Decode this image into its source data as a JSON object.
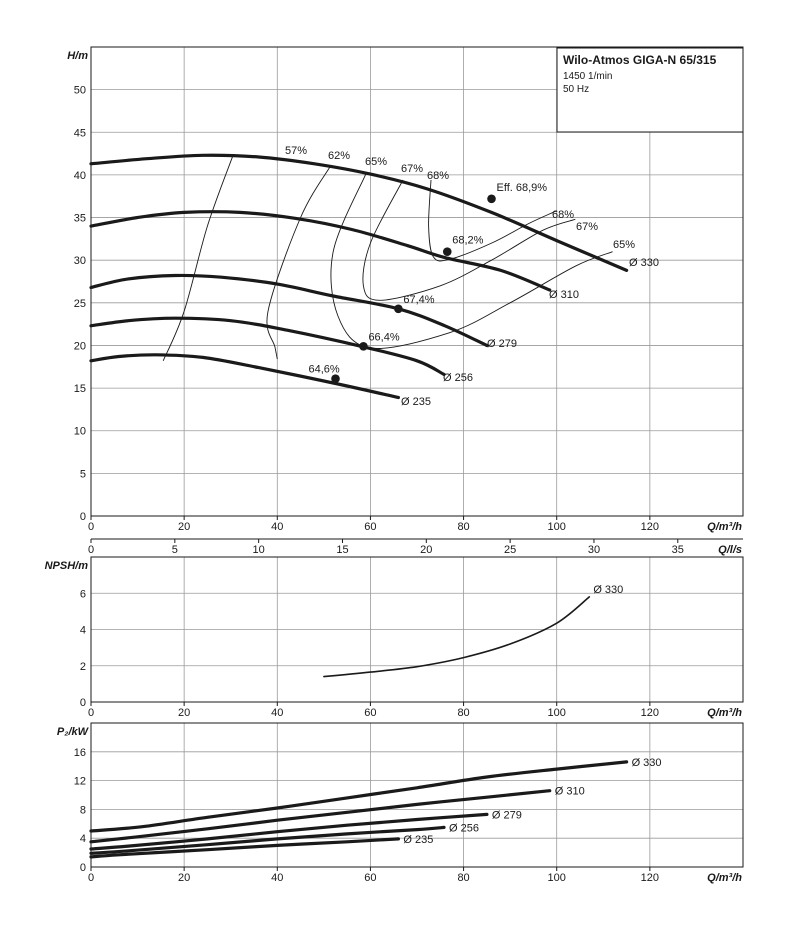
{
  "title_box": {
    "title": "Wilo-Atmos GIGA-N 65/315",
    "speed": "1450 1/min",
    "frequency": "50 Hz"
  },
  "chart_data": [
    {
      "type": "line",
      "name": "head",
      "xlabel": "Q/m³/h",
      "ylabel": "H/m",
      "xlim": [
        0,
        140
      ],
      "ylim": [
        0,
        55
      ],
      "x_ticks": [
        0,
        20,
        40,
        60,
        80,
        100,
        120
      ],
      "y_ticks": [
        0,
        5,
        10,
        15,
        20,
        25,
        30,
        35,
        40,
        45,
        50
      ],
      "grid": true,
      "series": [
        {
          "name": "Ø 330",
          "points": [
            [
              0,
              41.3
            ],
            [
              12,
              41.9
            ],
            [
              24,
              42.3
            ],
            [
              36,
              42.1
            ],
            [
              48,
              41.3
            ],
            [
              60,
              40.1
            ],
            [
              72,
              38.4
            ],
            [
              86,
              35.6
            ],
            [
              100,
              32.3
            ],
            [
              115,
              28.8
            ]
          ]
        },
        {
          "name": "Ø 310",
          "points": [
            [
              0,
              34
            ],
            [
              10,
              35
            ],
            [
              20,
              35.6
            ],
            [
              32,
              35.6
            ],
            [
              44,
              34.9
            ],
            [
              56,
              33.6
            ],
            [
              68,
              31.7
            ],
            [
              76,
              30.3
            ],
            [
              88,
              28.8
            ],
            [
              98.5,
              26.5
            ]
          ]
        },
        {
          "name": "Ø 279",
          "points": [
            [
              0,
              26.8
            ],
            [
              8,
              27.8
            ],
            [
              18,
              28.2
            ],
            [
              28,
              28
            ],
            [
              40,
              27.2
            ],
            [
              52,
              25.8
            ],
            [
              66,
              24.3
            ],
            [
              76,
              22.3
            ],
            [
              85,
              20
            ]
          ]
        },
        {
          "name": "Ø 256",
          "points": [
            [
              0,
              22.3
            ],
            [
              8,
              22.9
            ],
            [
              18,
              23.2
            ],
            [
              30,
              22.9
            ],
            [
              42,
              21.8
            ],
            [
              58,
              19.9
            ],
            [
              70,
              18.2
            ],
            [
              75.8,
              16.6
            ]
          ]
        },
        {
          "name": "Ø 235",
          "points": [
            [
              0,
              18.2
            ],
            [
              6,
              18.7
            ],
            [
              14,
              18.9
            ],
            [
              24,
              18.6
            ],
            [
              36,
              17.4
            ],
            [
              52,
              15.6
            ],
            [
              66,
              13.9
            ]
          ]
        }
      ],
      "iso_efficiency": [
        {
          "label": "57%",
          "points": [
            [
              30.5,
              42.3
            ],
            [
              25,
              34
            ],
            [
              20,
              24
            ],
            [
              15.5,
              18.2
            ]
          ]
        },
        {
          "label": "62%",
          "points": [
            [
              51.5,
              41.1
            ],
            [
              45,
              35
            ],
            [
              38,
              24
            ],
            [
              39.5,
              19.8
            ],
            [
              40,
              18.4
            ]
          ]
        },
        {
          "label": "65%",
          "points": [
            [
              59,
              40.1
            ],
            [
              52,
              31
            ],
            [
              53,
              23.5
            ],
            [
              60,
              19.7
            ],
            [
              77,
              21.5
            ],
            [
              90,
              25
            ],
            [
              104,
              29.3
            ],
            [
              112,
              31
            ]
          ]
        },
        {
          "label": "67%",
          "points": [
            [
              67,
              39.4
            ],
            [
              60,
              32
            ],
            [
              58.5,
              27
            ],
            [
              62,
              25.3
            ],
            [
              75,
              27
            ],
            [
              86,
              30
            ],
            [
              97,
              33.5
            ],
            [
              104,
              34.8
            ]
          ]
        },
        {
          "label": "68%",
          "points": [
            [
              73,
              39.4
            ],
            [
              72.5,
              34
            ],
            [
              73.5,
              30.4
            ],
            [
              77,
              30.1
            ],
            [
              86,
              32
            ],
            [
              94,
              34.3
            ],
            [
              100,
              35.8
            ]
          ]
        }
      ],
      "efficiency_points": [
        {
          "label": "Eff. 68,9%",
          "x": 86,
          "y": 37.2
        },
        {
          "label": "68,2%",
          "x": 76.5,
          "y": 31
        },
        {
          "label": "67,4%",
          "x": 66,
          "y": 24.3
        },
        {
          "label": "66,4%",
          "x": 58.5,
          "y": 19.9
        },
        {
          "label": "64,6%",
          "x": 52.5,
          "y": 16.1
        }
      ],
      "curve_labels": [
        "Ø 330",
        "Ø 310",
        "Ø 279",
        "Ø 256",
        "Ø 235"
      ],
      "efficiency_labels": [
        "57%",
        "62%",
        "65%",
        "67%",
        "68%",
        "68%",
        "67%",
        "65%"
      ]
    },
    {
      "type": "axis",
      "name": "flow_ls",
      "xlabel": "Q/l/s",
      "xlim": [
        0,
        38.89
      ],
      "x_ticks": [
        0,
        5,
        10,
        15,
        20,
        25,
        30,
        35
      ]
    },
    {
      "type": "line",
      "name": "npsh",
      "xlabel": "Q/m³/h",
      "ylabel": "NPSH/m",
      "xlim": [
        0,
        140
      ],
      "ylim": [
        0,
        8
      ],
      "x_ticks": [
        0,
        20,
        40,
        60,
        80,
        100,
        120
      ],
      "y_ticks": [
        0,
        2,
        4,
        6
      ],
      "grid": true,
      "series": [
        {
          "name": "Ø 330",
          "points": [
            [
              50,
              1.4
            ],
            [
              60,
              1.65
            ],
            [
              70,
              1.95
            ],
            [
              80,
              2.45
            ],
            [
              90,
              3.2
            ],
            [
              100,
              4.35
            ],
            [
              107,
              5.8
            ]
          ]
        }
      ]
    },
    {
      "type": "line",
      "name": "power",
      "xlabel": "Q/m³/h",
      "ylabel": "P₂/kW",
      "xlim": [
        0,
        140
      ],
      "ylim": [
        0,
        20
      ],
      "x_ticks": [
        0,
        20,
        40,
        60,
        80,
        100,
        120
      ],
      "y_ticks": [
        0,
        4,
        8,
        12,
        16
      ],
      "grid": true,
      "series": [
        {
          "name": "Ø 330",
          "points": [
            [
              0,
              5
            ],
            [
              11,
              5.6
            ],
            [
              25,
              6.9
            ],
            [
              40,
              8.2
            ],
            [
              55,
              9.6
            ],
            [
              70,
              11
            ],
            [
              85,
              12.5
            ],
            [
              100,
              13.6
            ],
            [
              115,
              14.6
            ]
          ]
        },
        {
          "name": "Ø 310",
          "points": [
            [
              0,
              3.5
            ],
            [
              10,
              4.2
            ],
            [
              25,
              5.3
            ],
            [
              40,
              6.5
            ],
            [
              55,
              7.6
            ],
            [
              70,
              8.7
            ],
            [
              85,
              9.7
            ],
            [
              98.5,
              10.6
            ]
          ]
        },
        {
          "name": "Ø 279",
          "points": [
            [
              0,
              2.5
            ],
            [
              8,
              2.9
            ],
            [
              25,
              3.9
            ],
            [
              40,
              4.9
            ],
            [
              55,
              5.8
            ],
            [
              70,
              6.6
            ],
            [
              85,
              7.3
            ]
          ]
        },
        {
          "name": "Ø 256",
          "points": [
            [
              0,
              1.9
            ],
            [
              7,
              2.2
            ],
            [
              25,
              3.1
            ],
            [
              40,
              3.9
            ],
            [
              55,
              4.6
            ],
            [
              70,
              5.2
            ],
            [
              75.8,
              5.5
            ]
          ]
        },
        {
          "name": "Ø 235",
          "points": [
            [
              0,
              1.4
            ],
            [
              6,
              1.7
            ],
            [
              25,
              2.4
            ],
            [
              40,
              3
            ],
            [
              55,
              3.5
            ],
            [
              66,
              3.9
            ]
          ]
        }
      ]
    }
  ]
}
